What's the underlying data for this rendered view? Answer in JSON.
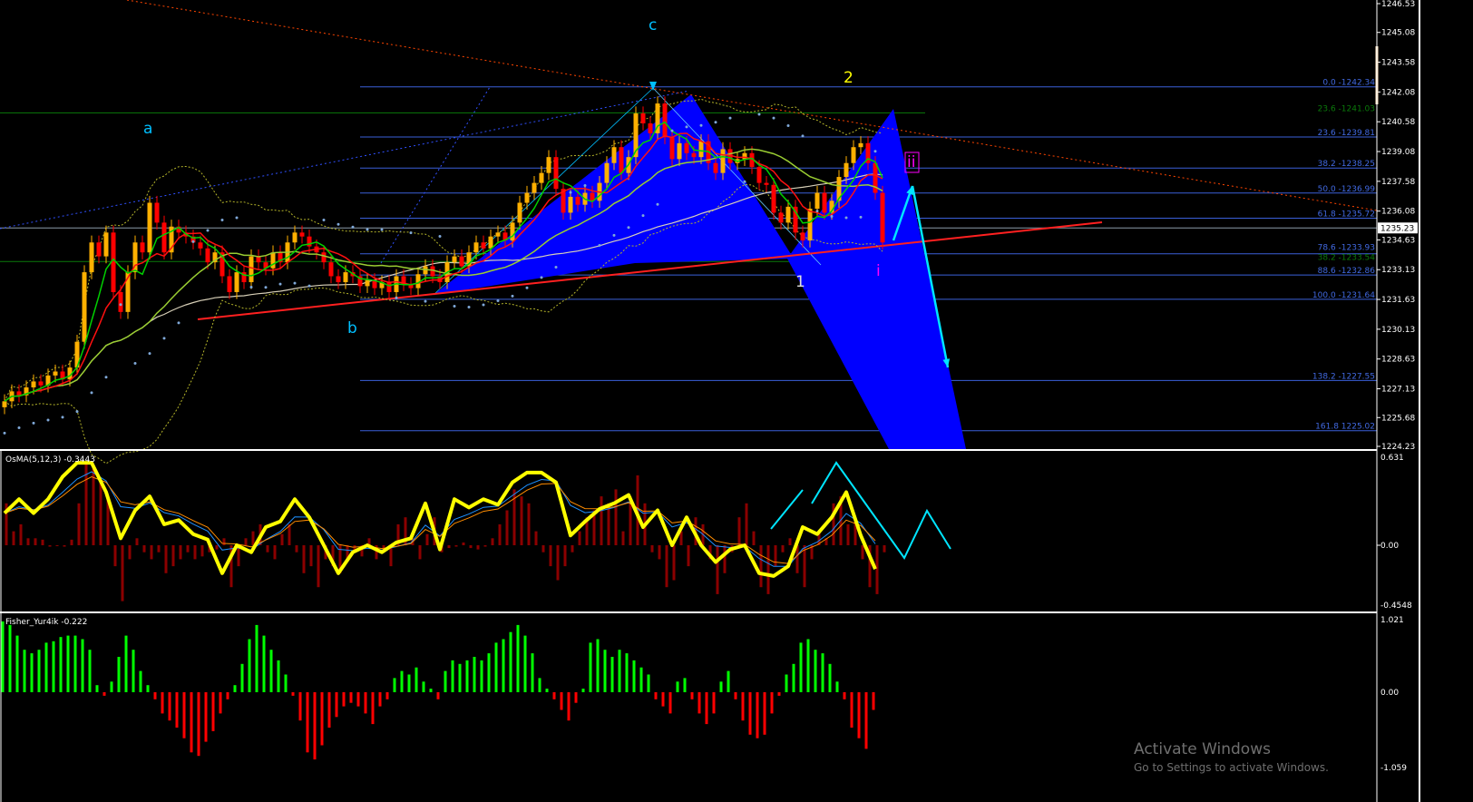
{
  "chart_data": [
    {
      "type": "candlestick",
      "pane": "main",
      "ylim": [
        1224.23,
        1246.53
      ],
      "y_ticks": [
        "1246.53",
        "1245.08",
        "1243.58",
        "1242.08",
        "1240.58",
        "1239.08",
        "1237.58",
        "1236.08",
        "1234.63",
        "1233.13",
        "1231.63",
        "1230.13",
        "1228.63",
        "1227.13",
        "1225.68",
        "1224.23"
      ],
      "current_price": "1235.23",
      "closes": [
        1226.5,
        1227,
        1226.8,
        1227.2,
        1227.5,
        1227.3,
        1227.8,
        1228,
        1227.6,
        1228.2,
        1229.5,
        1233,
        1234.5,
        1233.8,
        1235,
        1232,
        1231,
        1233,
        1234.5,
        1234,
        1236.5,
        1235.5,
        1234,
        1235.3,
        1235,
        1234.8,
        1234.5,
        1234.2,
        1233.5,
        1234,
        1232.8,
        1232,
        1233,
        1232.5,
        1233.8,
        1233.5,
        1233.2,
        1234,
        1233.5,
        1234.5,
        1235,
        1234.8,
        1234.3,
        1234,
        1233.5,
        1232.8,
        1232.5,
        1233,
        1232.8,
        1232.3,
        1232.6,
        1232.2,
        1232.5,
        1232,
        1232.8,
        1232.4,
        1232.2,
        1232.9,
        1233.3,
        1232.8,
        1232.5,
        1233.5,
        1233.8,
        1233.3,
        1234,
        1234.5,
        1234.2,
        1234.8,
        1235,
        1234.6,
        1235.5,
        1236.5,
        1237,
        1237.5,
        1238,
        1238.8,
        1237.2,
        1236,
        1236.8,
        1236.4,
        1237,
        1236.6,
        1237.5,
        1238.5,
        1239.3,
        1238,
        1238.8,
        1241,
        1240.5,
        1240,
        1241.5,
        1239.8,
        1238.7,
        1239.5,
        1239,
        1238.8,
        1239.6,
        1238.5,
        1238,
        1239.2,
        1238.5,
        1238.7,
        1239,
        1238.3,
        1237.5,
        1237.4,
        1236,
        1235.5,
        1236.3,
        1235,
        1234.6,
        1236.2,
        1237,
        1236,
        1236.6,
        1237.8,
        1238.5,
        1239.3,
        1239.5,
        1238.5,
        1237,
        1234.5
      ],
      "fib_levels": [
        {
          "label": "0.0 -1242.34",
          "price": 1242.34,
          "color": "#4169e1"
        },
        {
          "label": "23.6 -1241.03",
          "price": 1241.03,
          "color": "#006400"
        },
        {
          "label": "23.6 -1239.81",
          "price": 1239.81,
          "color": "#4169e1"
        },
        {
          "label": "38.2 -1238.25",
          "price": 1238.25,
          "color": "#4169e1"
        },
        {
          "label": "50.0 -1236.99",
          "price": 1236.99,
          "color": "#4169e1"
        },
        {
          "label": "61.8 -1235.72",
          "price": 1235.72,
          "color": "#4169e1"
        },
        {
          "label": "78.6 -1233.93",
          "price": 1233.93,
          "color": "#4169e1"
        },
        {
          "label": "38.2 -1233.54",
          "price": 1233.54,
          "color": "#006400"
        },
        {
          "label": "88.6 -1232.86",
          "price": 1232.86,
          "color": "#4169e1"
        },
        {
          "label": "100.0 -1231.64",
          "price": 1231.64,
          "color": "#4169e1"
        },
        {
          "label": "138.2  -1227.55",
          "price": 1227.55,
          "color": "#4169e1"
        },
        {
          "label": "161.8 1225.02",
          "price": 1225.02,
          "color": "#4169e1"
        }
      ],
      "wave_labels": [
        {
          "text": "a",
          "color": "#00bfff"
        },
        {
          "text": "b",
          "color": "#00bfff"
        },
        {
          "text": "c",
          "color": "#00bfff"
        },
        {
          "text": "1",
          "color": "#e0e0e0"
        },
        {
          "text": "2",
          "color": "#ffff00"
        },
        {
          "text": "i",
          "color": "#ff00ff"
        },
        {
          "text": "ii",
          "color": "#ff00ff"
        }
      ],
      "colors": {
        "bull": "#ffb000",
        "bear": "#ff0000",
        "pattern": "#0000ff",
        "trendline": "#ff2020",
        "arrow": "#00e5ff"
      }
    },
    {
      "type": "bar+line",
      "pane": "osma",
      "title": "OsMA(5,12,3) -0.3443",
      "ylim": [
        -0.4548,
        0.631
      ],
      "y_ticks": [
        "0.631",
        "0.00",
        "-0.4548"
      ],
      "histogram": [
        0.3,
        0.1,
        0.15,
        0.05,
        0.05,
        0.04,
        -0.01,
        -0.005,
        -0.01,
        0.04,
        0.3,
        0.58,
        0.55,
        0.45,
        0.35,
        -0.15,
        -0.4,
        -0.1,
        0.05,
        -0.05,
        -0.1,
        -0.05,
        -0.2,
        -0.15,
        -0.1,
        -0.05,
        -0.1,
        -0.08,
        -0.05,
        -0.03,
        0.05,
        -0.3,
        -0.15,
        0.05,
        0.1,
        0.15,
        -0.05,
        -0.1,
        0.08,
        0.15,
        -0.05,
        -0.2,
        -0.15,
        -0.3,
        -0.1,
        -0.15,
        -0.2,
        -0.1,
        -0.05,
        -0.08,
        0.05,
        -0.1,
        -0.05,
        -0.15,
        0.15,
        0.2,
        0.05,
        -0.1,
        0.08,
        0.2,
        -0.05,
        -0.02,
        -0.01,
        0.02,
        -0.02,
        -0.03,
        -0.01,
        0.05,
        0.15,
        0.25,
        0.4,
        0.35,
        0.3,
        0.1,
        -0.05,
        -0.15,
        -0.25,
        -0.15,
        -0.05,
        0.1,
        0.2,
        0.25,
        0.35,
        0.3,
        0.4,
        0.1,
        0.35,
        0.5,
        0.3,
        -0.05,
        -0.1,
        -0.3,
        -0.25,
        0.1,
        -0.15,
        0.2,
        0.15,
        -0.1,
        -0.35,
        -0.2,
        -0.05,
        0.2,
        0.3,
        0.1,
        -0.3,
        -0.35,
        -0.15,
        -0.05,
        0.05,
        -0.2,
        -0.3,
        -0.1,
        0.1,
        0.05,
        0.3,
        0.35,
        0.15,
        0.2,
        -0.1,
        -0.3,
        -0.35,
        -0.05
      ],
      "signal_line": [
        0.23,
        0.33,
        0.23,
        0.33,
        0.49,
        0.59,
        0.59,
        0.38,
        0.05,
        0.25,
        0.35,
        0.15,
        0.18,
        0.08,
        0.04,
        -0.2,
        0.0,
        -0.05,
        0.13,
        0.17,
        0.33,
        0.2,
        0.0,
        -0.2,
        -0.05,
        0.0,
        -0.05,
        0.02,
        0.05,
        0.3,
        -0.03,
        0.33,
        0.27,
        0.33,
        0.29,
        0.45,
        0.52,
        0.52,
        0.45,
        0.07,
        0.17,
        0.26,
        0.3,
        0.36,
        0.13,
        0.25,
        0.0,
        0.2,
        0.0,
        -0.12,
        -0.03,
        0.0,
        -0.2,
        -0.22,
        -0.15,
        0.13,
        0.08,
        0.2,
        0.38,
        0.07,
        -0.17
      ],
      "colors": {
        "histogram": "#8b0000",
        "signal": "#ffff00",
        "fast": "#1e90ff",
        "slow": "#ff8c00"
      }
    },
    {
      "type": "bar",
      "pane": "fisher",
      "title": "Fisher_Yur4ik -0.222",
      "ylim": [
        -1.059,
        1.021
      ],
      "y_ticks": [
        "1.021",
        "0.00",
        "-1.059"
      ],
      "values": [
        1.0,
        0.95,
        0.8,
        0.6,
        0.55,
        0.6,
        0.7,
        0.72,
        0.78,
        0.8,
        0.8,
        0.75,
        0.6,
        0.1,
        -0.05,
        0.15,
        0.5,
        0.8,
        0.6,
        0.3,
        0.1,
        -0.1,
        -0.3,
        -0.4,
        -0.5,
        -0.65,
        -0.85,
        -0.9,
        -0.7,
        -0.55,
        -0.3,
        -0.1,
        0.1,
        0.4,
        0.75,
        0.95,
        0.8,
        0.6,
        0.45,
        0.25,
        -0.05,
        -0.4,
        -0.85,
        -0.95,
        -0.75,
        -0.5,
        -0.35,
        -0.2,
        -0.15,
        -0.2,
        -0.3,
        -0.45,
        -0.2,
        -0.1,
        0.2,
        0.3,
        0.25,
        0.35,
        0.15,
        0.05,
        -0.1,
        0.3,
        0.45,
        0.4,
        0.45,
        0.5,
        0.45,
        0.55,
        0.7,
        0.75,
        0.85,
        0.95,
        0.8,
        0.55,
        0.2,
        0.05,
        -0.1,
        -0.25,
        -0.4,
        -0.15,
        0.05,
        0.7,
        0.75,
        0.6,
        0.5,
        0.6,
        0.55,
        0.45,
        0.35,
        0.25,
        -0.1,
        -0.2,
        -0.3,
        0.15,
        0.2,
        -0.1,
        -0.3,
        -0.45,
        -0.3,
        0.15,
        0.3,
        -0.1,
        -0.4,
        -0.6,
        -0.65,
        -0.6,
        -0.3,
        -0.05,
        0.25,
        0.4,
        0.7,
        0.75,
        0.6,
        0.55,
        0.4,
        0.15,
        -0.1,
        -0.5,
        -0.65,
        -0.8,
        -0.25
      ],
      "colors": {
        "positive": "#00ff00",
        "negative": "#ff0000"
      }
    }
  ],
  "watermark": {
    "line1": "Activate Windows",
    "line2": "Go to Settings to activate Windows."
  }
}
